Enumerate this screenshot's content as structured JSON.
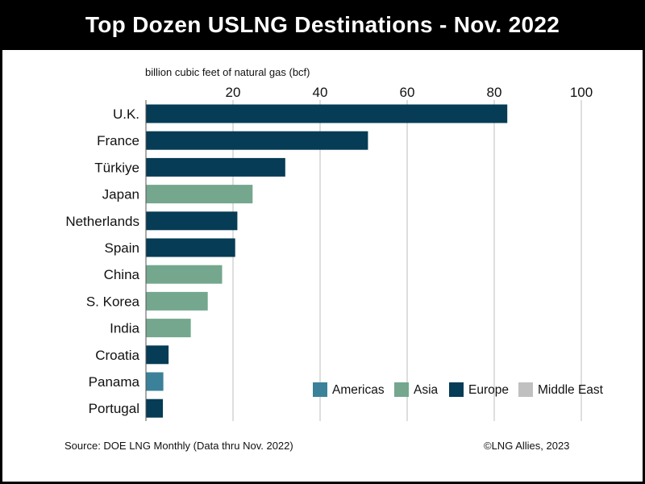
{
  "title": "Top Dozen USLNG Destinations - Nov. 2022",
  "footer": {
    "source": "Source: DOE LNG Monthly (Data thru Nov. 2022)",
    "credit": "©LNG Allies, 2023"
  },
  "colors": {
    "Americas": "#3b8199",
    "Asia": "#74a78e",
    "Europe": "#063c55",
    "Middle East": "#c0c0c0"
  },
  "chart_data": {
    "type": "bar",
    "orientation": "horizontal",
    "title": "Top Dozen USLNG Destinations - Nov. 2022",
    "xlabel": "billion cubic feet of natural gas (bcf)",
    "ylabel": "",
    "xlim": [
      0,
      100
    ],
    "xticks": [
      20,
      40,
      60,
      80,
      100
    ],
    "grid": true,
    "legend_position": "bottom-right",
    "categories": [
      "U.K.",
      "France",
      "Türkiye",
      "Japan",
      "Netherlands",
      "Spain",
      "China",
      "S. Korea",
      "India",
      "Croatia",
      "Panama",
      "Portugal"
    ],
    "values": [
      83,
      51,
      32,
      24.5,
      21,
      20.5,
      17.5,
      14.2,
      10.3,
      5.2,
      4,
      3.9
    ],
    "regions": [
      "Europe",
      "Europe",
      "Europe",
      "Asia",
      "Europe",
      "Europe",
      "Asia",
      "Asia",
      "Asia",
      "Europe",
      "Americas",
      "Europe"
    ],
    "legend": [
      "Americas",
      "Asia",
      "Europe",
      "Middle East"
    ]
  }
}
